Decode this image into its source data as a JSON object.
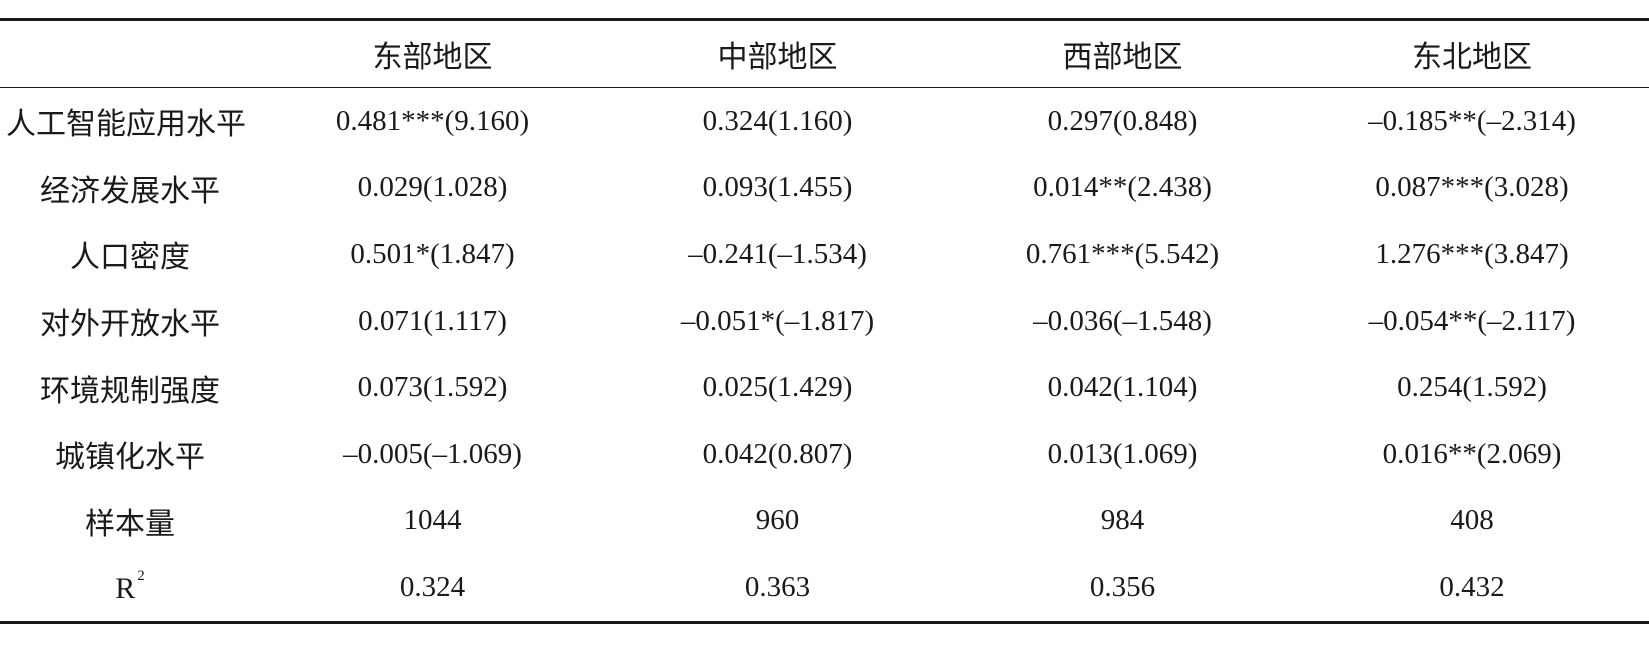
{
  "table": {
    "headers": [
      "",
      "东部地区",
      "中部地区",
      "西部地区",
      "东北地区"
    ],
    "rows": [
      {
        "label": "人工智能应用水平",
        "cells": [
          "0.481***(9.160)",
          "0.324(1.160)",
          "0.297(0.848)",
          "–0.185**(–2.314)"
        ]
      },
      {
        "label": "经济发展水平",
        "cells": [
          "0.029(1.028)",
          "0.093(1.455)",
          "0.014**(2.438)",
          "0.087***(3.028)"
        ]
      },
      {
        "label": "人口密度",
        "cells": [
          "0.501*(1.847)",
          "–0.241(–1.534)",
          "0.761***(5.542)",
          "1.276***(3.847)"
        ]
      },
      {
        "label": "对外开放水平",
        "cells": [
          "0.071(1.117)",
          "–0.051*(–1.817)",
          "–0.036(–1.548)",
          "–0.054**(–2.117)"
        ]
      },
      {
        "label": "环境规制强度",
        "cells": [
          "0.073(1.592)",
          "0.025(1.429)",
          "0.042(1.104)",
          "0.254(1.592)"
        ]
      },
      {
        "label": "城镇化水平",
        "cells": [
          "–0.005(–1.069)",
          "0.042(0.807)",
          "0.013(1.069)",
          "0.016**(2.069)"
        ]
      },
      {
        "label": "样本量",
        "cells": [
          "1044",
          "960",
          "984",
          "408"
        ]
      },
      {
        "label": "R",
        "label_sup": "2",
        "cells": [
          "0.324",
          "0.363",
          "0.356",
          "0.432"
        ]
      }
    ]
  }
}
